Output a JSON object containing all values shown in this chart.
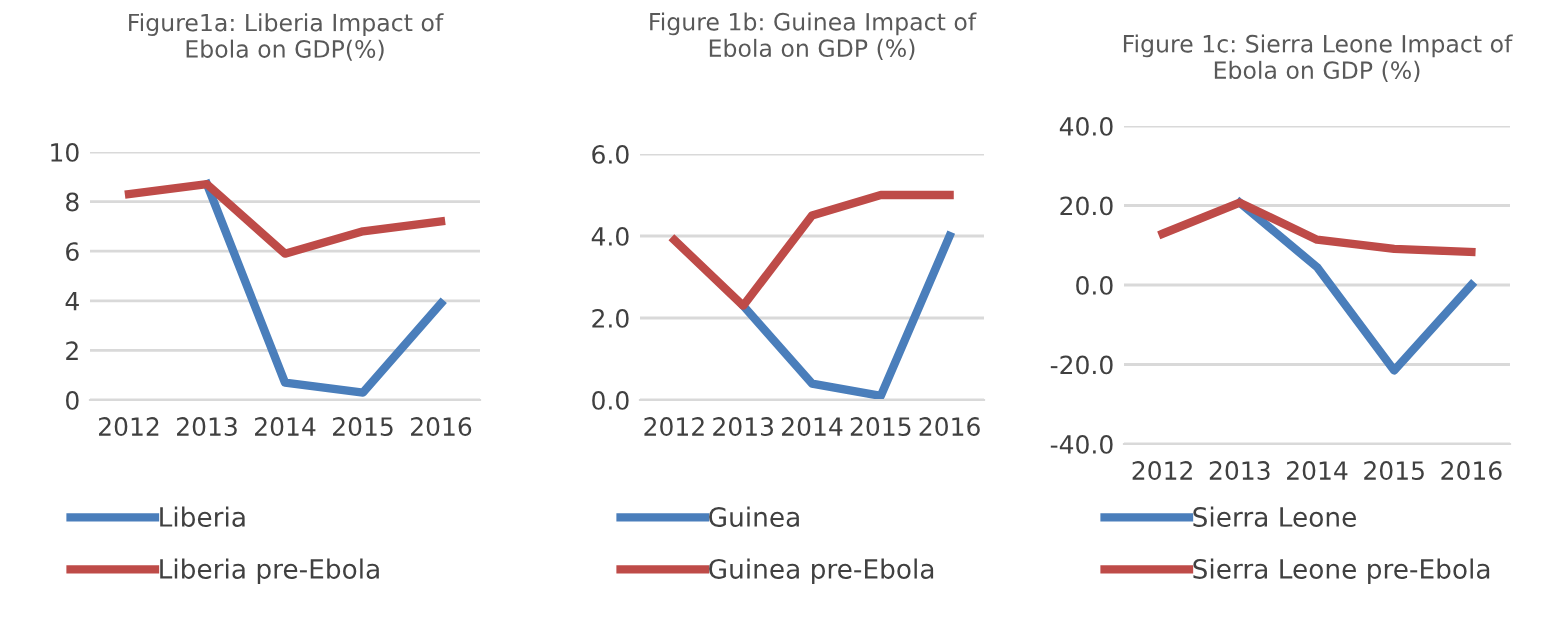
{
  "chart_data": [
    {
      "type": "line",
      "title": "Figure1a: Liberia Impact of\nEbola on GDP(%)",
      "categories": [
        "2012",
        "2013",
        "2014",
        "2015",
        "2016"
      ],
      "series": [
        {
          "name": "Liberia",
          "color": "#4a7ebb",
          "values": [
            null,
            8.7,
            0.7,
            0.3,
            3.9
          ]
        },
        {
          "name": "Liberia pre-Ebola",
          "color": "#be4b48",
          "values": [
            8.3,
            8.7,
            5.9,
            6.8,
            7.2
          ]
        }
      ],
      "ylim": [
        0,
        10
      ],
      "yticks": [
        0,
        2,
        4,
        6,
        8,
        10
      ],
      "grid": "y",
      "legend": "bottom",
      "marker": "none",
      "line_style": "solid"
    },
    {
      "type": "line",
      "title": "Figure 1b: Guinea Impact of\nEbola on GDP (%)",
      "categories": [
        "2012",
        "2013",
        "2014",
        "2015",
        "2016"
      ],
      "series": [
        {
          "name": "Guinea",
          "color": "#4a7ebb",
          "values": [
            null,
            2.3,
            0.4,
            0.1,
            4.0
          ]
        },
        {
          "name": "Guinea pre-Ebola",
          "color": "#be4b48",
          "values": [
            3.9,
            2.3,
            4.5,
            5.0,
            5.0
          ]
        }
      ],
      "ylim": [
        0,
        6
      ],
      "yticks": [
        {
          "value": 0,
          "label": "0.0"
        },
        {
          "value": 2,
          "label": "2.0"
        },
        {
          "value": 4,
          "label": "4.0"
        },
        {
          "value": 6,
          "label": "6.0"
        }
      ],
      "grid": "y",
      "legend": "bottom",
      "marker": "none",
      "line_style": "solid"
    },
    {
      "type": "line",
      "title": "Figure 1c: Sierra Leone Impact of\nEbola on GDP (%)",
      "categories": [
        "2012",
        "2013",
        "2014",
        "2015",
        "2016"
      ],
      "series": [
        {
          "name": "Sierra Leone",
          "color": "#4a7ebb",
          "values": [
            null,
            20.7,
            4.5,
            -21.5,
            0.0
          ]
        },
        {
          "name": "Sierra Leone pre-Ebola",
          "color": "#be4b48",
          "values": [
            12.9,
            20.7,
            11.4,
            9.1,
            8.3
          ]
        }
      ],
      "ylim": [
        -40,
        40
      ],
      "yticks": [
        {
          "value": -40,
          "label": "-40.0"
        },
        {
          "value": -20,
          "label": "-20.0"
        },
        {
          "value": 0,
          "label": "0.0"
        },
        {
          "value": 20,
          "label": "20.0"
        },
        {
          "value": 40,
          "label": "40.0"
        }
      ],
      "grid": "y",
      "legend": "bottom",
      "marker": "none",
      "line_style": "solid"
    }
  ]
}
